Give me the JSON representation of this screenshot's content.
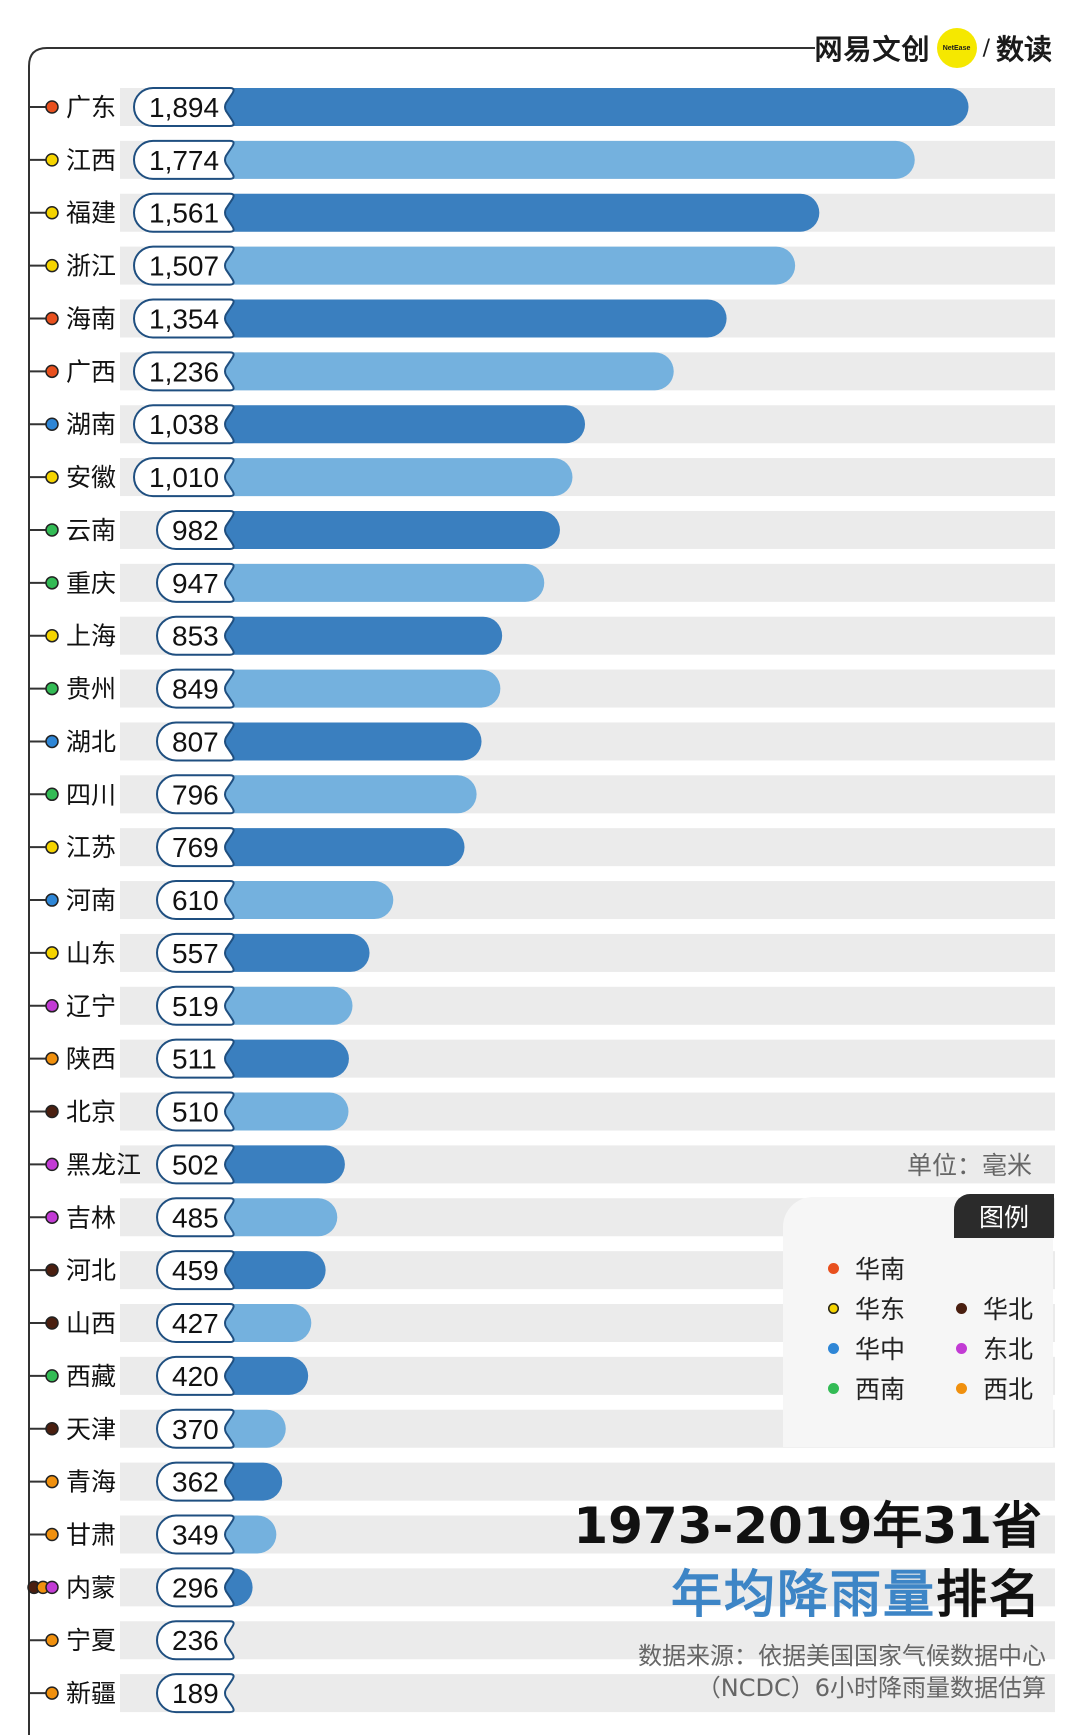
{
  "brand": {
    "name": "网易文创",
    "dot_text": "NetEase",
    "slash": "/",
    "sub": "数读"
  },
  "unit_label": "单位：毫米",
  "legend": {
    "title": "图例",
    "items": [
      {
        "name": "华南",
        "color": "#e8501e"
      },
      {
        "name": "华东",
        "color": "#f5d400"
      },
      {
        "name": "华北",
        "color": "#4a1f10"
      },
      {
        "name": "华中",
        "color": "#2e86d6"
      },
      {
        "name": "东北",
        "color": "#c23bd4"
      },
      {
        "name": "西南",
        "color": "#33bb55"
      },
      {
        "name": "西北",
        "color": "#f0900e"
      }
    ]
  },
  "title": {
    "line1": "1973-2019年31省",
    "line2_highlight": "年均降雨量",
    "line2_rest": "排名"
  },
  "source": {
    "line1": "数据来源：依据美国国家气候数据中心",
    "line2": "（NCDC）6小时降雨量数据估算"
  },
  "colors": {
    "bar_dark": "#3a7fbf",
    "bar_light": "#74b1de",
    "track": "#ebebeb",
    "frame": "#333333"
  },
  "chart_data": {
    "type": "bar",
    "orientation": "horizontal",
    "unit": "毫米",
    "xlim": [
      0,
      2000
    ],
    "categories": [
      "广东",
      "江西",
      "福建",
      "浙江",
      "海南",
      "广西",
      "湖南",
      "安徽",
      "云南",
      "重庆",
      "上海",
      "贵州",
      "湖北",
      "四川",
      "江苏",
      "河南",
      "山东",
      "辽宁",
      "陕西",
      "北京",
      "黑龙江",
      "吉林",
      "河北",
      "山西",
      "西藏",
      "天津",
      "青海",
      "甘肃",
      "内蒙",
      "宁夏",
      "新疆"
    ],
    "values": [
      1894,
      1774,
      1561,
      1507,
      1354,
      1236,
      1038,
      1010,
      982,
      947,
      853,
      849,
      807,
      796,
      769,
      610,
      557,
      519,
      511,
      510,
      502,
      485,
      459,
      427,
      420,
      370,
      362,
      349,
      296,
      236,
      189
    ],
    "labels": [
      "1,894",
      "1,774",
      "1,561",
      "1,507",
      "1,354",
      "1,236",
      "1,038",
      "1,010",
      "982",
      "947",
      "853",
      "849",
      "807",
      "796",
      "769",
      "610",
      "557",
      "519",
      "511",
      "510",
      "502",
      "485",
      "459",
      "427",
      "420",
      "370",
      "362",
      "349",
      "296",
      "236",
      "189"
    ],
    "regions": [
      [
        "华南"
      ],
      [
        "华东"
      ],
      [
        "华东"
      ],
      [
        "华东"
      ],
      [
        "华南"
      ],
      [
        "华南"
      ],
      [
        "华中"
      ],
      [
        "华东"
      ],
      [
        "西南"
      ],
      [
        "西南"
      ],
      [
        "华东"
      ],
      [
        "西南"
      ],
      [
        "华中"
      ],
      [
        "西南"
      ],
      [
        "华东"
      ],
      [
        "华中"
      ],
      [
        "华东"
      ],
      [
        "东北"
      ],
      [
        "西北"
      ],
      [
        "华北"
      ],
      [
        "东北"
      ],
      [
        "东北"
      ],
      [
        "华北"
      ],
      [
        "华北"
      ],
      [
        "西南"
      ],
      [
        "华北"
      ],
      [
        "西北"
      ],
      [
        "西北"
      ],
      [
        "华北",
        "西北",
        "东北"
      ],
      [
        "西北"
      ],
      [
        "西北"
      ]
    ]
  }
}
